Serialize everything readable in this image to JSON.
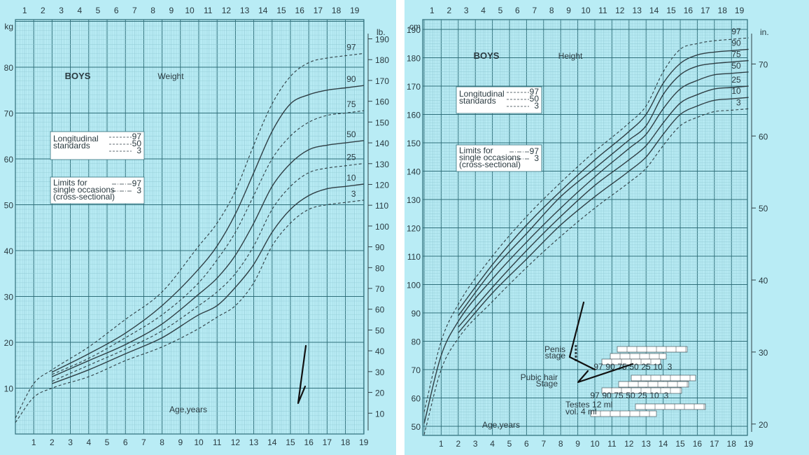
{
  "colors": {
    "paper": "#b9ecf5",
    "grid_minor": "#8fc9d3",
    "grid_major": "#2f6f7a",
    "curve": "#2f3f45",
    "box_bg": "#ffffff",
    "text": "#2a3a40",
    "pen": "#111111"
  },
  "chart_data": [
    {
      "type": "line",
      "title": "BOYS",
      "subtitle": "Weight",
      "xlabel": "Age,years",
      "ylabel": "kg",
      "ylabel_right": "lb.",
      "xlim": [
        0,
        19
      ],
      "ylim": [
        0,
        90
      ],
      "yticks_kg": [
        10,
        20,
        30,
        40,
        50,
        60,
        70,
        80
      ],
      "yticks_lb": [
        10,
        20,
        30,
        40,
        50,
        60,
        70,
        80,
        90,
        100,
        110,
        120,
        130,
        140,
        150,
        160,
        170,
        180,
        190
      ],
      "xticks": [
        1,
        2,
        3,
        4,
        5,
        6,
        7,
        8,
        9,
        10,
        11,
        12,
        13,
        14,
        15,
        16,
        17,
        18,
        19
      ],
      "legend_box1_title": "Longitudinal standards",
      "legend_box1_entries": [
        "97",
        "50",
        "3"
      ],
      "legend_box2_title": "Limits for single occasions (cross-sectional)",
      "legend_box2_entries": [
        "97",
        "3"
      ],
      "grid": true,
      "series": [
        {
          "name": "97",
          "style": "dash",
          "x": [
            0,
            1,
            2,
            4,
            6,
            8,
            10,
            11,
            12,
            13,
            14,
            15,
            16,
            17,
            18,
            19
          ],
          "values": [
            3.5,
            11,
            14,
            19,
            25,
            31,
            41,
            46,
            53,
            63,
            72,
            78,
            81,
            82,
            82.5,
            83
          ]
        },
        {
          "name": "90",
          "style": "solid",
          "x": [
            2,
            4,
            6,
            8,
            10,
            11,
            12,
            13,
            14,
            15,
            16,
            17,
            18,
            19
          ],
          "values": [
            13.5,
            17.5,
            22,
            28,
            36,
            41,
            48,
            57,
            66,
            72,
            74,
            75,
            75.5,
            76
          ]
        },
        {
          "name": "75",
          "style": "dash",
          "x": [
            2,
            4,
            6,
            8,
            10,
            11,
            12,
            13,
            14,
            15,
            16,
            17,
            18,
            19
          ],
          "values": [
            13,
            16.5,
            21,
            26,
            33,
            38,
            44,
            52,
            60,
            65,
            68,
            69.5,
            70,
            70.5
          ]
        },
        {
          "name": "50",
          "style": "solid",
          "x": [
            2,
            4,
            6,
            8,
            10,
            11,
            12,
            13,
            14,
            15,
            16,
            17,
            18,
            19
          ],
          "values": [
            12.5,
            16,
            19.5,
            24,
            30.5,
            34,
            39,
            46,
            54,
            59,
            62,
            63,
            63.5,
            64
          ]
        },
        {
          "name": "25",
          "style": "dash",
          "x": [
            2,
            4,
            6,
            8,
            10,
            11,
            12,
            13,
            14,
            15,
            16,
            17,
            18,
            19
          ],
          "values": [
            11.5,
            15,
            18.5,
            22.5,
            28,
            31,
            35,
            41,
            49,
            54,
            57,
            58,
            58.5,
            59
          ]
        },
        {
          "name": "10",
          "style": "solid",
          "x": [
            2,
            4,
            6,
            8,
            10,
            11,
            12,
            13,
            14,
            15,
            16,
            17,
            18,
            19
          ],
          "values": [
            11,
            14,
            17.5,
            21,
            26,
            28,
            32,
            37,
            44,
            49,
            52,
            53.5,
            54,
            54.5
          ]
        },
        {
          "name": "3",
          "style": "dash",
          "x": [
            0,
            1,
            2,
            4,
            6,
            8,
            10,
            11,
            12,
            13,
            14,
            15,
            16,
            17,
            18,
            19
          ],
          "values": [
            2.5,
            8,
            10,
            12.5,
            16,
            19,
            23,
            25.5,
            28,
            33,
            41,
            46,
            49,
            50,
            50.5,
            51
          ]
        }
      ],
      "annotations": {
        "handwritten_mark_age": 15.2
      }
    },
    {
      "type": "line",
      "title": "BOYS",
      "subtitle": "Height",
      "xlabel": "Age,years",
      "ylabel": "cm",
      "ylabel_right": "in.",
      "xlim": [
        0,
        19
      ],
      "ylim": [
        45,
        195
      ],
      "yticks_cm": [
        50,
        60,
        70,
        80,
        90,
        100,
        110,
        120,
        130,
        140,
        150,
        160,
        170,
        180,
        190
      ],
      "yticks_in": [
        20,
        30,
        40,
        50,
        60,
        70
      ],
      "xticks": [
        1,
        2,
        3,
        4,
        5,
        6,
        7,
        8,
        9,
        10,
        11,
        12,
        13,
        14,
        15,
        16,
        17,
        18,
        19
      ],
      "legend_box1_title": "Longitudinal standards",
      "legend_box1_entries": [
        "97",
        "50",
        "3"
      ],
      "legend_box2_title": "Limits for single occasions (cross-sectional)",
      "legend_box2_entries": [
        "97",
        "3"
      ],
      "grid": true,
      "maturity_labels": {
        "penis": "Penis stage",
        "pubic": "Pubic hair Stage",
        "testes_1": "Testes 12 ml",
        "testes_2": "vol. 4 ml",
        "percentile_row": [
          "97",
          "90",
          "75",
          "50",
          "25",
          "10",
          "3"
        ]
      },
      "series": [
        {
          "name": "97",
          "style": "dash",
          "x": [
            0,
            1,
            2,
            4,
            6,
            8,
            10,
            12,
            13,
            14,
            15,
            16,
            17,
            18,
            19
          ],
          "values": [
            55,
            80,
            93,
            110,
            124,
            136,
            147,
            157,
            163,
            175,
            183,
            185,
            186,
            186.5,
            187
          ]
        },
        {
          "name": "90",
          "style": "solid",
          "x": [
            2,
            4,
            6,
            8,
            10,
            12,
            13,
            14,
            15,
            16,
            17,
            18,
            19
          ],
          "values": [
            91,
            107,
            121,
            133,
            144,
            154,
            160,
            171,
            178,
            181,
            182,
            182.5,
            183
          ]
        },
        {
          "name": "75",
          "style": "solid",
          "x": [
            2,
            4,
            6,
            8,
            10,
            12,
            13,
            14,
            15,
            16,
            17,
            18,
            19
          ],
          "values": [
            89,
            105,
            118,
            131,
            141,
            151,
            156,
            167,
            174,
            177,
            178,
            178.5,
            179
          ]
        },
        {
          "name": "50",
          "style": "solid",
          "x": [
            0,
            1,
            2,
            4,
            6,
            8,
            10,
            12,
            13,
            14,
            15,
            16,
            17,
            18,
            19
          ],
          "values": [
            51,
            75,
            87,
            102,
            115,
            127,
            138,
            148,
            153,
            162,
            169,
            172,
            174,
            174.5,
            175
          ]
        },
        {
          "name": "25",
          "style": "solid",
          "x": [
            2,
            4,
            6,
            8,
            10,
            12,
            13,
            14,
            15,
            16,
            17,
            18,
            19
          ],
          "values": [
            85,
            99,
            112,
            124,
            135,
            144,
            149,
            157,
            164,
            167,
            169,
            169.5,
            170
          ]
        },
        {
          "name": "10",
          "style": "solid",
          "x": [
            2,
            4,
            6,
            8,
            10,
            12,
            13,
            14,
            15,
            16,
            17,
            18,
            19
          ],
          "values": [
            83,
            97,
            109,
            121,
            131,
            140,
            145,
            153,
            160,
            163,
            165,
            165.5,
            166
          ]
        },
        {
          "name": "3",
          "style": "dash",
          "x": [
            0,
            1,
            2,
            4,
            6,
            8,
            10,
            12,
            13,
            14,
            15,
            16,
            17,
            18,
            19
          ],
          "values": [
            47,
            70,
            81,
            94,
            106,
            117,
            127,
            136,
            141,
            149,
            156,
            159,
            161,
            161.5,
            162
          ]
        }
      ],
      "annotations": {
        "handwritten_mark_age": 9.0
      }
    }
  ]
}
